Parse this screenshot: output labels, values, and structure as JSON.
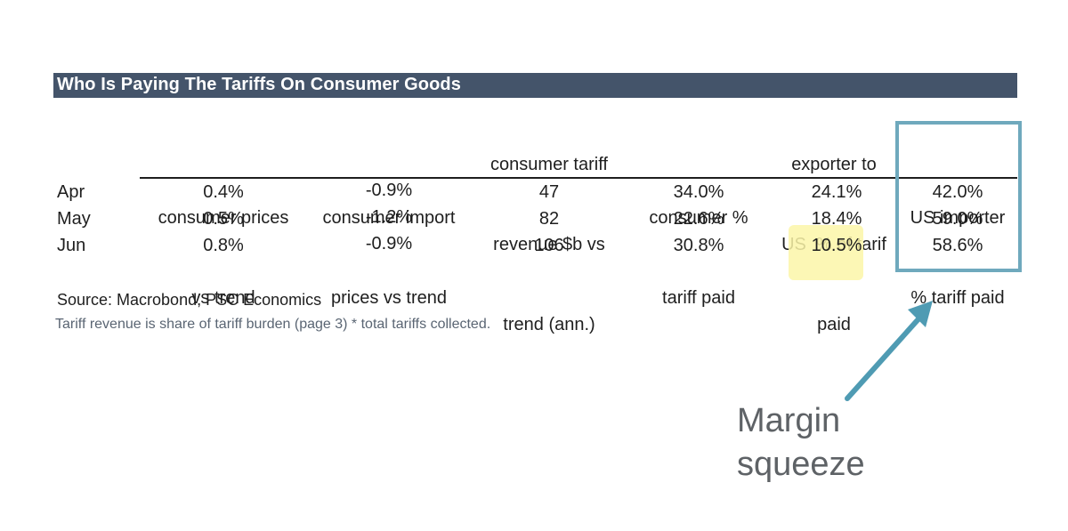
{
  "title": "Who Is Paying The Tariffs On Consumer Goods",
  "columns": [
    {
      "lines": [
        "",
        "consumer prices",
        "vs trend"
      ]
    },
    {
      "lines": [
        "",
        "consumer import",
        "prices vs trend"
      ]
    },
    {
      "lines": [
        "consumer tariff",
        "revenue $b vs",
        "trend (ann.)"
      ]
    },
    {
      "lines": [
        "",
        "consumer %",
        "tariff paid"
      ]
    },
    {
      "lines": [
        "exporter to",
        "US  % of tarif",
        "paid"
      ]
    },
    {
      "lines": [
        "",
        "US importer",
        "% tariff paid"
      ]
    }
  ],
  "rows": [
    {
      "label": "Apr",
      "values": [
        "0.4%",
        "-0.9%",
        "47",
        "34.0%",
        "24.1%",
        "42.0%"
      ]
    },
    {
      "label": "May",
      "values": [
        "0.5%",
        "-1.2%",
        "82",
        "22.6%",
        "18.4%",
        "59.0%"
      ]
    },
    {
      "label": "Jun",
      "values": [
        "0.8%",
        "-0.9%",
        "106",
        "30.8%",
        "10.5%",
        "58.6%"
      ]
    }
  ],
  "source": "Source: Macrobond, PSC Economics",
  "note": "Tariff revenue is share of tariff burden (page 3) * total tariffs collected.",
  "annotation": {
    "line1": "Margin",
    "line2": "squeeze"
  },
  "colors": {
    "title_bar": "#44546a",
    "highlight": "#fbf6a8",
    "box_outline": "#6fa9bd",
    "arrow": "#4f9bb3",
    "annotation_text": "#5e6266"
  }
}
